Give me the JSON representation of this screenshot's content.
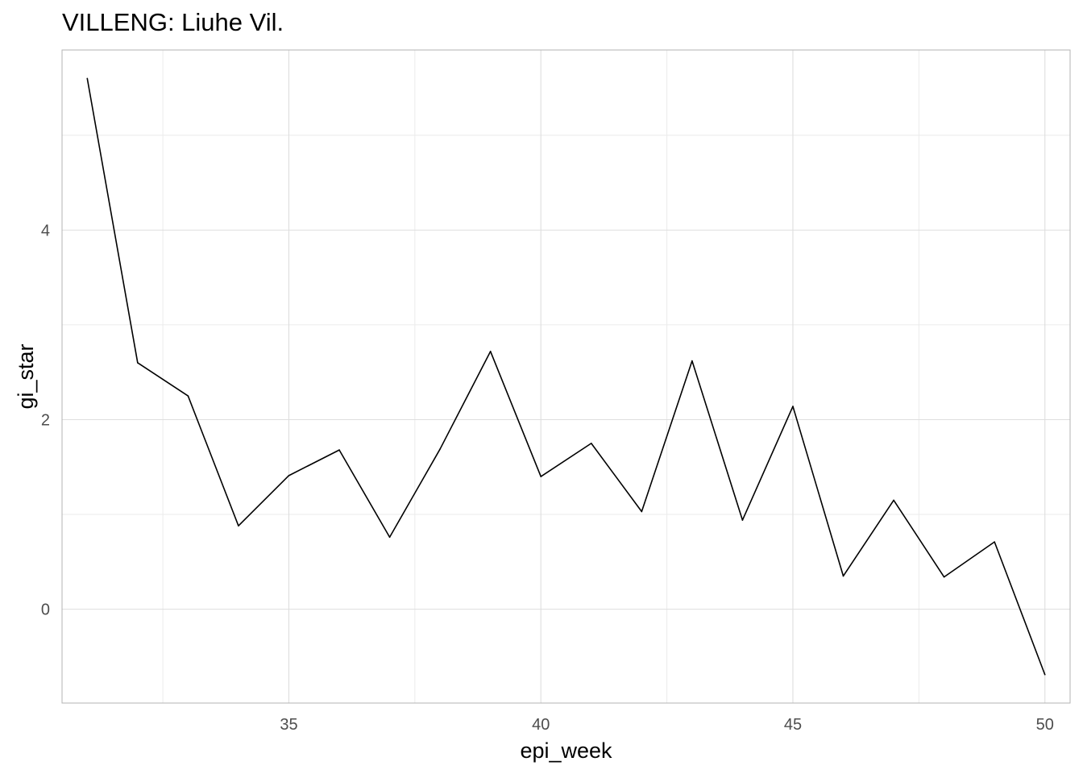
{
  "chart_data": {
    "type": "line",
    "title": "VILLENG: Liuhe Vil.",
    "xlabel": "epi_week",
    "ylabel": "gi_star",
    "xlim": [
      30.5,
      50.5
    ],
    "ylim": [
      -0.99,
      5.9
    ],
    "x_ticks": [
      35,
      40,
      45,
      50
    ],
    "y_ticks": [
      0,
      2,
      4
    ],
    "x_minor_gridlines": [
      32.5,
      37.5,
      42.5,
      47.5
    ],
    "y_minor_gridlines": [
      -1,
      1,
      3,
      5
    ],
    "grid": true,
    "legend": "none",
    "series": [
      {
        "color": "#000000",
        "x": [
          31,
          32,
          33,
          34,
          35,
          36,
          37,
          38,
          39,
          40,
          41,
          42,
          43,
          44,
          45,
          46,
          47,
          48,
          49,
          50
        ],
        "y": [
          5.6,
          2.6,
          2.25,
          0.88,
          1.41,
          1.68,
          0.76,
          1.69,
          2.72,
          1.4,
          1.75,
          1.03,
          2.62,
          0.94,
          2.14,
          0.35,
          1.15,
          0.34,
          0.71,
          -0.69
        ]
      }
    ]
  }
}
